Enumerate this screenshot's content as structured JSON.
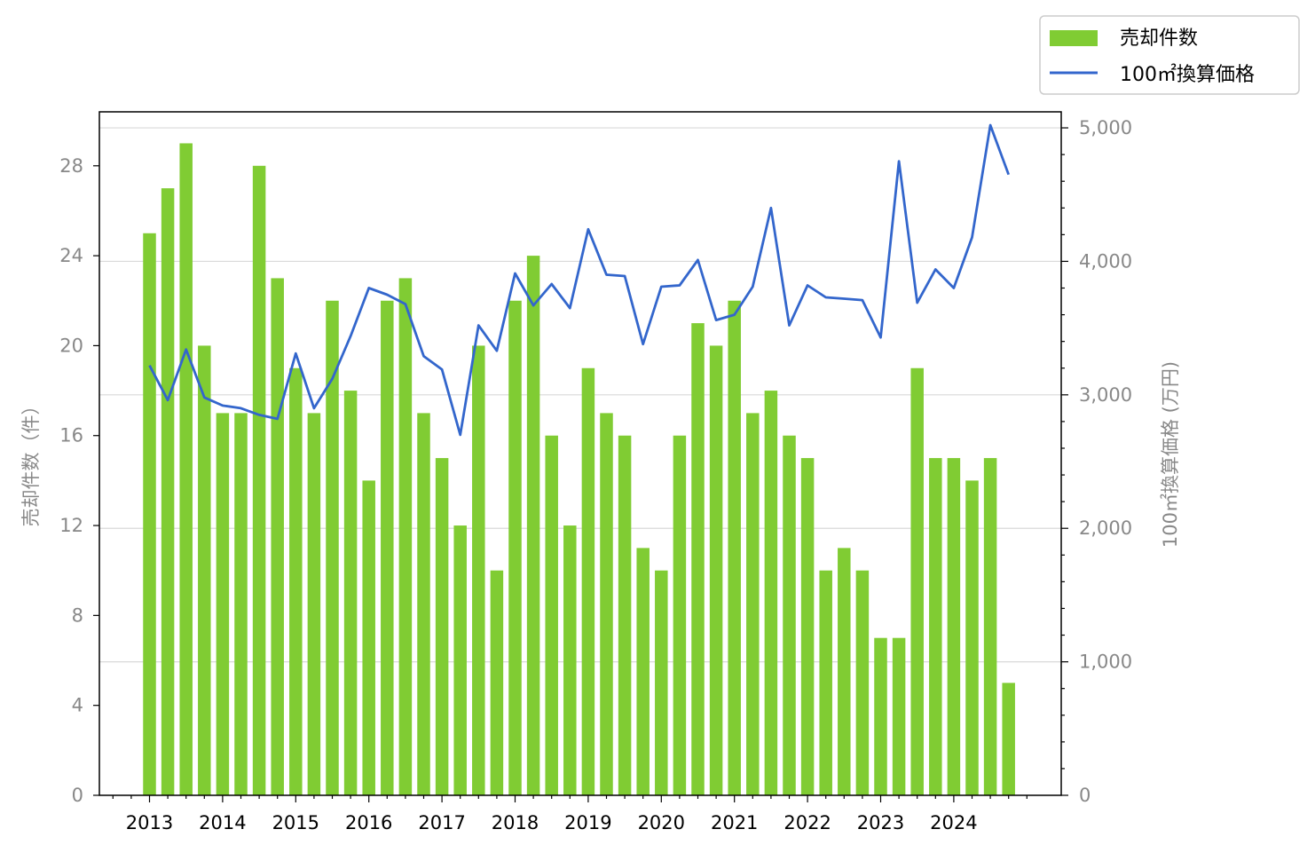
{
  "chart_data": {
    "type": "bar+line",
    "x_tick_labels": [
      "2013",
      "2014",
      "2015",
      "2016",
      "2017",
      "2018",
      "2019",
      "2020",
      "2021",
      "2022",
      "2023",
      "2024"
    ],
    "left_axis": {
      "label": "売却件数（件）",
      "ticks": [
        "0",
        "4",
        "8",
        "12",
        "16",
        "20",
        "24",
        "28"
      ],
      "ylim": [
        0,
        30.4
      ]
    },
    "right_axis": {
      "label": "100㎡換算価格 (万円)",
      "ticks": [
        "0",
        "1,000",
        "2,000",
        "3,000",
        "4,000",
        "5,000"
      ],
      "ylim": [
        0,
        5120
      ]
    },
    "grid": "horizontal",
    "legend_position": "top-right, outside plot",
    "series": [
      {
        "name": "売却件数",
        "type": "bar",
        "axis": "left",
        "color": "#80cc33",
        "values": [
          25,
          27,
          29,
          20,
          17,
          17,
          28,
          23,
          19,
          17,
          22,
          18,
          14,
          22,
          23,
          17,
          15,
          12,
          20,
          10,
          22,
          24,
          16,
          12,
          19,
          17,
          16,
          11,
          10,
          16,
          21,
          20,
          22,
          17,
          18,
          16,
          15,
          10,
          11,
          10,
          7,
          7,
          19,
          15,
          15,
          14,
          15,
          5
        ]
      },
      {
        "name": "100㎡換算価格",
        "type": "line",
        "axis": "right",
        "color": "#3366cc",
        "values": [
          3220,
          2960,
          3340,
          2980,
          2920,
          2900,
          2850,
          2820,
          3310,
          2900,
          3120,
          3440,
          3800,
          3750,
          3680,
          3290,
          3190,
          2700,
          3520,
          3330,
          3910,
          3670,
          3830,
          3650,
          4240,
          3900,
          3890,
          3380,
          3810,
          3820,
          4010,
          3560,
          3600,
          3810,
          4400,
          3520,
          3820,
          3730,
          3720,
          3710,
          3430,
          4750,
          3690,
          3940,
          3800,
          4180,
          5020,
          4650
        ]
      }
    ]
  }
}
